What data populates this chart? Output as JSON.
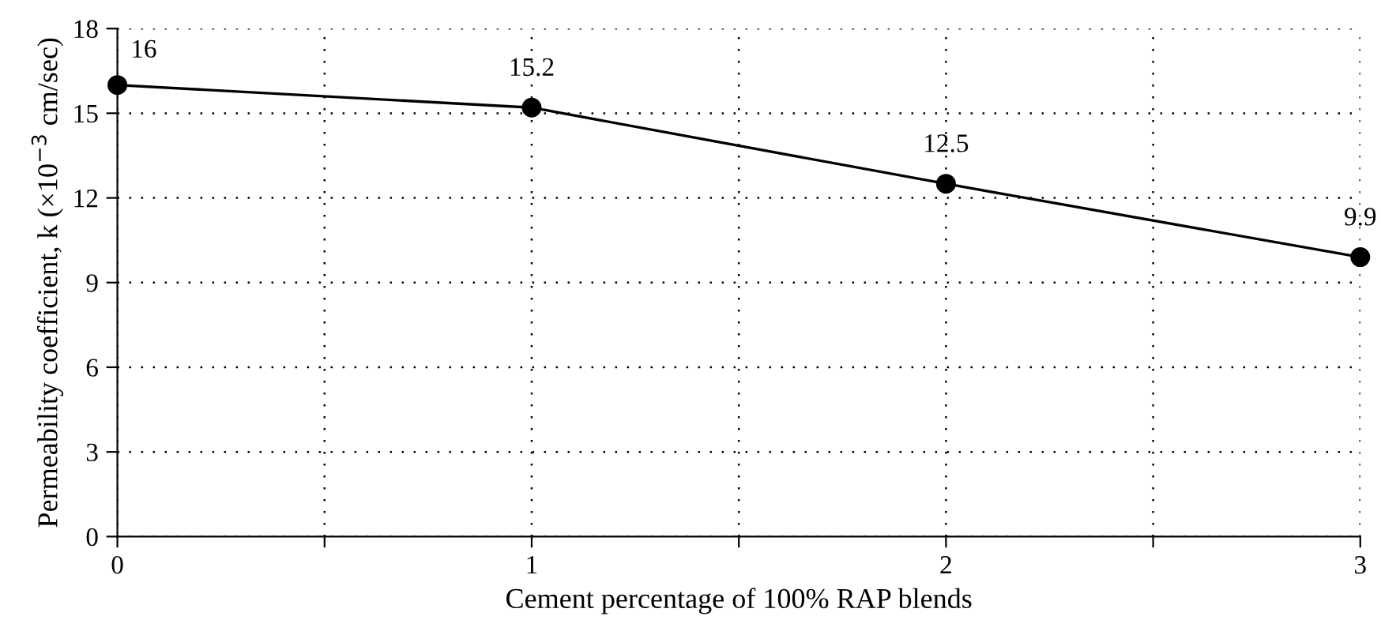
{
  "chart_data": {
    "type": "line",
    "xlabel": "Cement percentage of 100% RAP blends",
    "ylabel": "Permeability coefficient, k (×10$^{−3}$ cm/sec)",
    "x": [
      0,
      1,
      2,
      3
    ],
    "series": [
      {
        "color": "#000000",
        "values": [
          16,
          15.2,
          12.5,
          9.9
        ]
      }
    ],
    "xlim": [
      0,
      3
    ],
    "xticks": [
      0,
      {
        "value": 0.5,
        "label": null
      },
      1,
      {
        "value": 1.5,
        "label": null
      },
      2,
      {
        "value": 2.5,
        "label": null
      },
      3
    ],
    "ylim": [
      0,
      18
    ],
    "yticks": [
      0,
      3,
      6,
      9,
      12,
      15,
      18
    ],
    "grid": true,
    "marker": "circle",
    "line_style": "solid",
    "data_labels": true
  }
}
